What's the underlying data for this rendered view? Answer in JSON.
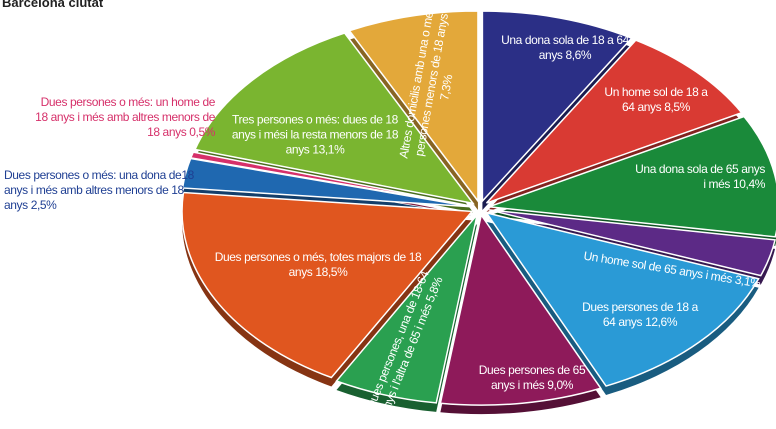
{
  "chart_data": {
    "type": "pie",
    "title": "Barcelona ciutat",
    "categories": [
      "Una dona sola de 18 a 64 anys",
      "Un home sol de 18 a 64 anys",
      "Una dona sola de 65 anys i més",
      "Un home sol de 65 anys i més",
      "Dues persones de 18 a 64 anys",
      "Dues persones de 65 anys i més",
      "Dues persones, una de 18-64 anys i l'altra de 65 i més",
      "Dues persones o més, totes majors de 18 anys",
      "Dues persones o més: una dona de18 anys i més amb altres menors de 18 anys",
      "Dues persones o més: un home de 18 anys i més amb altres menors de 18 anys",
      "Tres persones o més: dues de 18 anys i mési la resta menors de 18 anys",
      "Altres domicilis amb una o més persones menors de 18 anys"
    ],
    "values": [
      8.6,
      8.5,
      10.4,
      3.1,
      12.6,
      9.0,
      5.8,
      18.5,
      2.5,
      0.5,
      13.1,
      7.3
    ],
    "value_labels": [
      "8,6%",
      "8,5%",
      "10,4%",
      "3,1%",
      "12,6%",
      "9,0%",
      "5,8%",
      "18,5%",
      "2,5%",
      "0,5%",
      "13,1%",
      "7,3%"
    ],
    "colors": [
      "#2b2f86",
      "#d93a33",
      "#1a8a3a",
      "#5c2a86",
      "#2a9ad6",
      "#8e1a5a",
      "#2aa050",
      "#e0561f",
      "#1f68b0",
      "#d6306a",
      "#7ab530",
      "#e3a83a"
    ]
  }
}
